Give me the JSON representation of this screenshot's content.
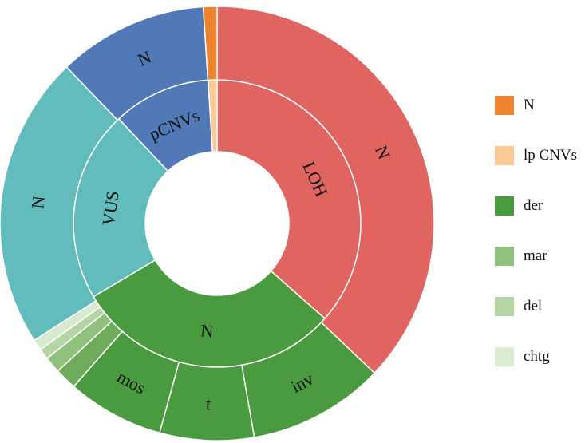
{
  "chart_data": {
    "type": "sunburst",
    "title": "",
    "inner_ring": [
      {
        "label": "LOH",
        "value": 36.5,
        "color": "#e06460"
      },
      {
        "label": "N",
        "value": 30.0,
        "color": "#4a9a3f"
      },
      {
        "label": "VUS",
        "value": 21.5,
        "color": "#63bcbc"
      },
      {
        "label": "pCNVs",
        "value": 11.0,
        "color": "#5279b7"
      },
      {
        "label": "",
        "value": 1.0,
        "color": "#fbc995"
      }
    ],
    "outer_ring": [
      {
        "label": "N",
        "value": 36.5,
        "color": "#e06460",
        "parent": "LOH"
      },
      {
        "label": "inv",
        "value": 10.0,
        "color": "#4a9a3f",
        "parent": "N"
      },
      {
        "label": "t",
        "value": 6.9,
        "color": "#4a9a3f",
        "parent": "N"
      },
      {
        "label": "mos",
        "value": 7.1,
        "color": "#4a9a3f",
        "parent": "N"
      },
      {
        "label": "",
        "value": 1.6,
        "color": "#6eab5a",
        "parent": "N"
      },
      {
        "label": "",
        "value": 1.2,
        "color": "#8fc07c",
        "parent": "N"
      },
      {
        "label": "",
        "value": 0.8,
        "color": "#b4d6a4",
        "parent": "N"
      },
      {
        "label": "",
        "value": 0.8,
        "color": "#d7eacd",
        "parent": "N"
      },
      {
        "label": "N",
        "value": 21.5,
        "color": "#63bcbc",
        "parent": "VUS"
      },
      {
        "label": "N",
        "value": 11.0,
        "color": "#5279b7",
        "parent": "pCNVs"
      },
      {
        "label": "",
        "value": 1.0,
        "color": "#ee8430",
        "parent": ""
      }
    ],
    "legend": {
      "position": "right",
      "items": [
        {
          "label": "N",
          "color": "#ee8430"
        },
        {
          "label": "lp CNVs",
          "color": "#fbc995"
        },
        {
          "label": "der",
          "color": "#4a9a3f"
        },
        {
          "label": "mar",
          "color": "#8fc07c"
        },
        {
          "label": "del",
          "color": "#b4d6a4"
        },
        {
          "label": "chtg",
          "color": "#dcecd3"
        }
      ]
    }
  }
}
